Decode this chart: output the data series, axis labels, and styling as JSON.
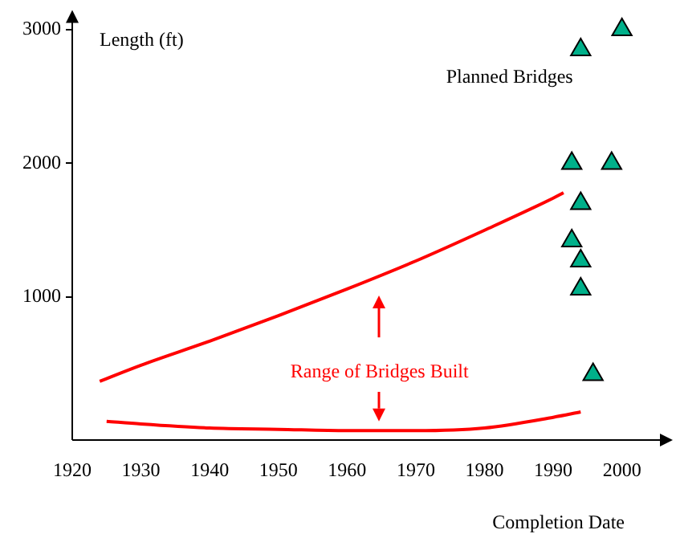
{
  "chart_data": {
    "type": "line",
    "xlabel": "Completion Date",
    "ylabel": "Length (ft)",
    "xlim": [
      1920,
      2006
    ],
    "xticks": [
      1920,
      1930,
      1940,
      1950,
      1960,
      1970,
      1980,
      1990,
      2000
    ],
    "ylim": [
      -70,
      3100
    ],
    "yticks": [
      1000,
      2000,
      3000
    ],
    "grid": false,
    "legend": false,
    "marker": "none",
    "line_style": "solid",
    "series": [
      {
        "color": "#ff0000",
        "x": [
          1924,
          1930,
          1940,
          1950,
          1960,
          1970,
          1980,
          1990,
          1991.5
        ],
        "values": [
          370,
          490,
          670,
          860,
          1060,
          1270,
          1500,
          1740,
          1780
        ]
      },
      {
        "color": "#ff0000",
        "x": [
          1925,
          1930,
          1940,
          1950,
          1960,
          1970,
          1980,
          1990,
          1994
        ],
        "values": [
          70,
          50,
          20,
          10,
          0,
          0,
          20,
          100,
          140
        ]
      },
      {
        "type": "scatter",
        "marker": "triangle",
        "color": "#00b08a",
        "x": [
          1994,
          2000,
          1992.7,
          1998.5,
          1994,
          1992.7,
          1994,
          1994,
          1995.8
        ],
        "values": [
          2850,
          3000,
          2000,
          2000,
          1700,
          1420,
          1270,
          1060,
          420
        ]
      }
    ],
    "annotations": [
      "Planned Bridges",
      "Range of Bridges Built"
    ]
  }
}
